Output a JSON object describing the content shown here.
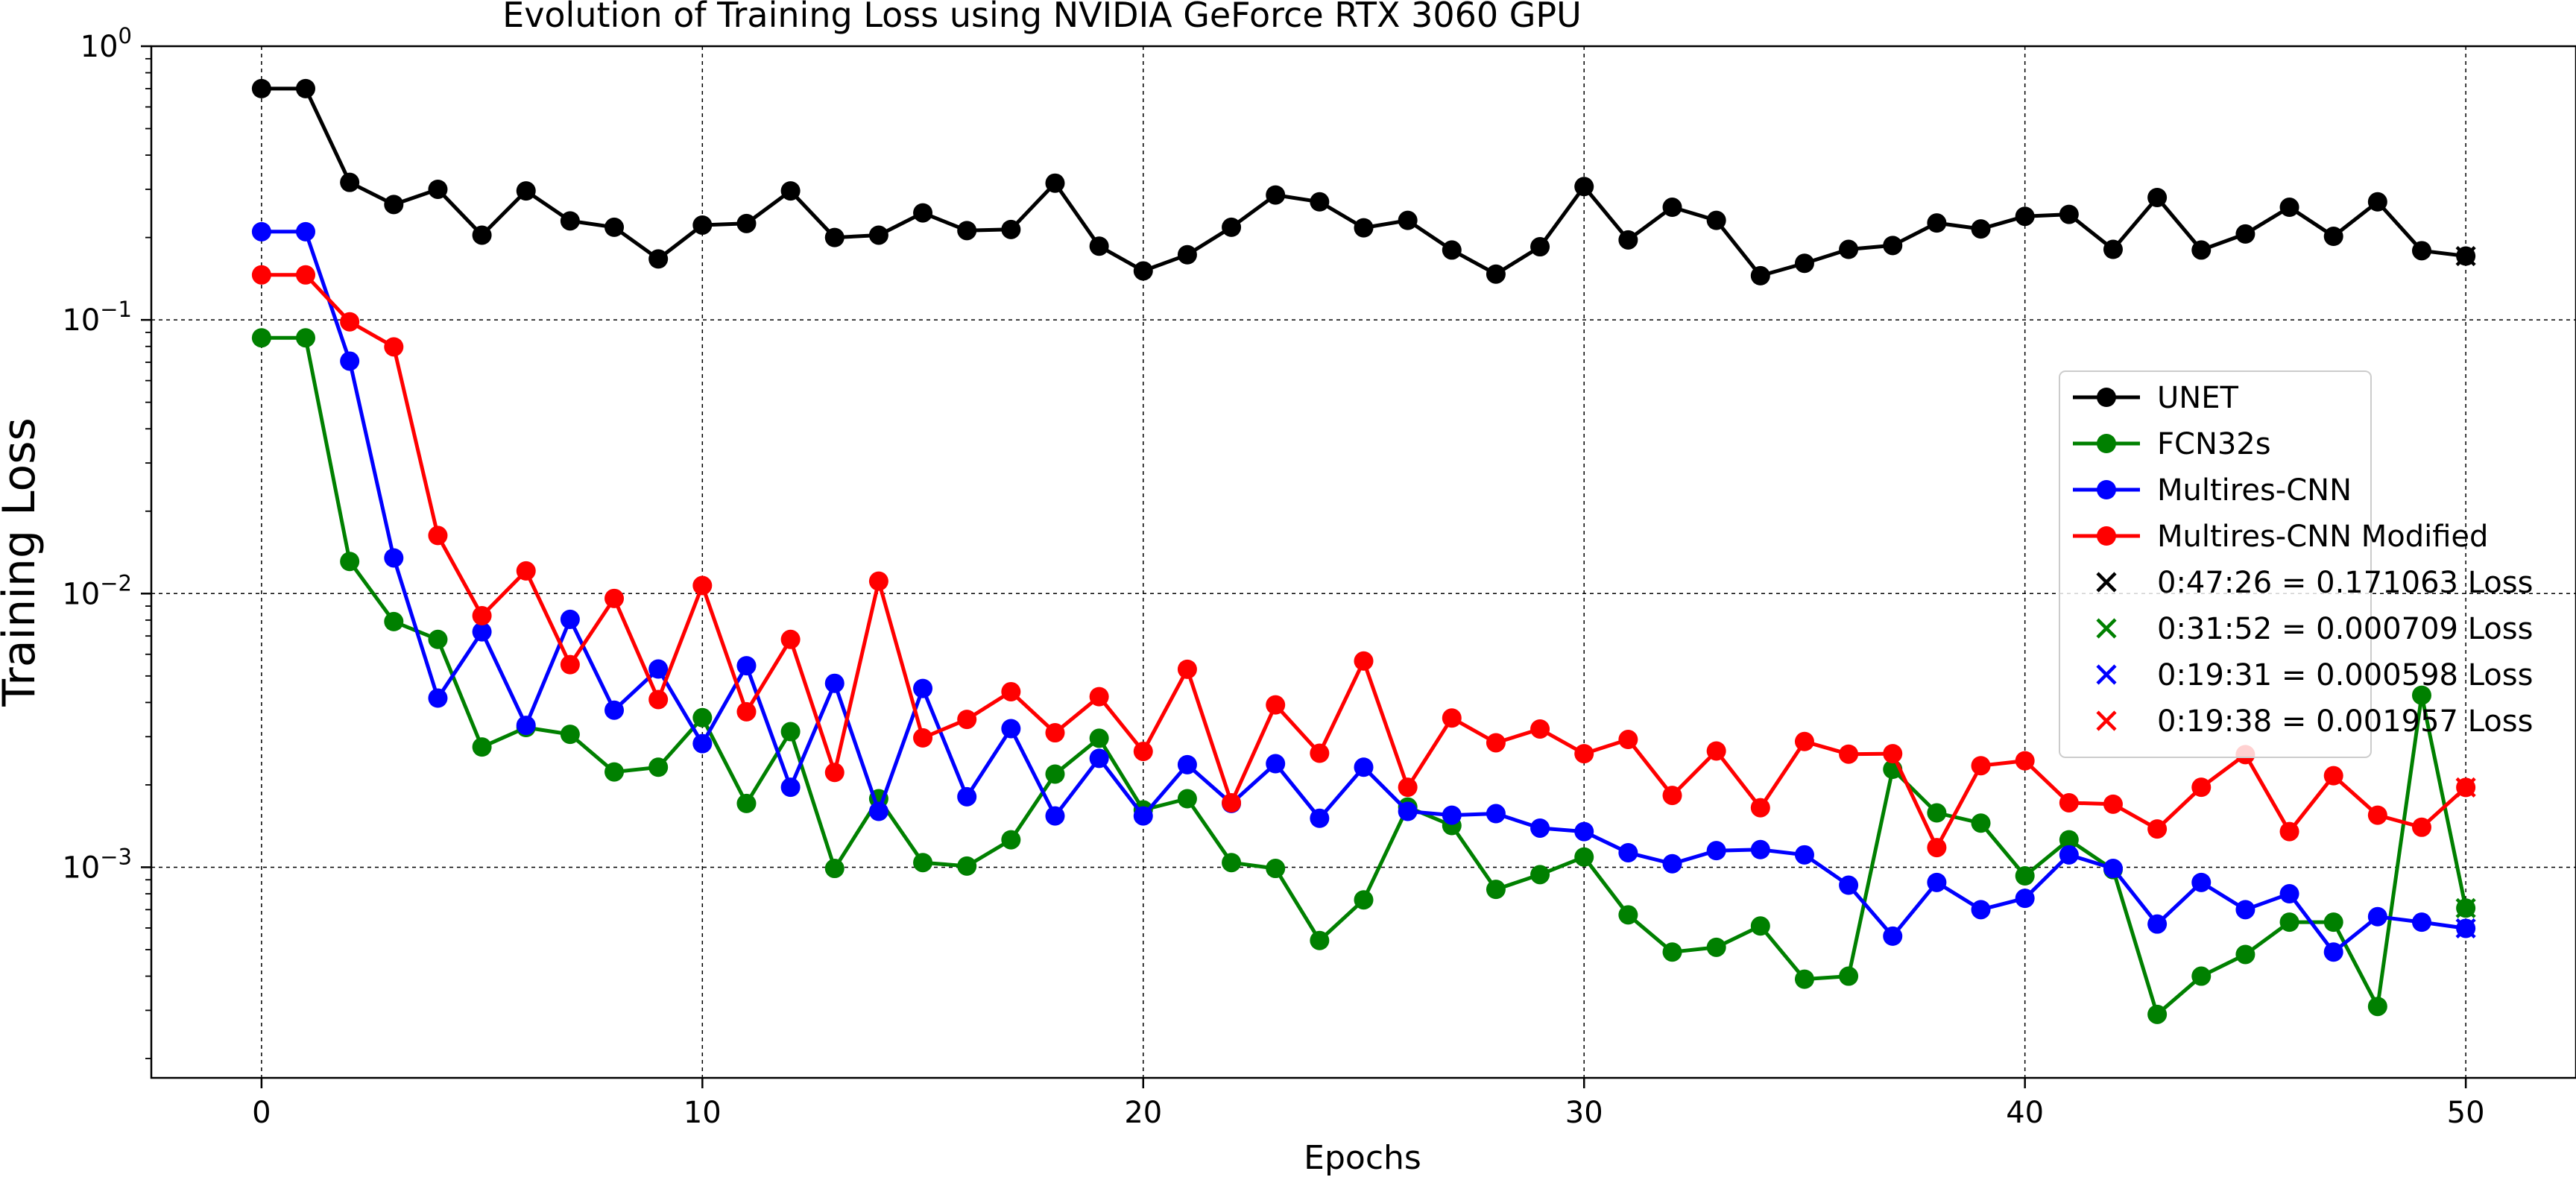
{
  "chart_data": {
    "type": "line",
    "title": "Evolution of Training Loss using NVIDIA GeForce RTX 3060 GPU",
    "xlabel": "Epochs",
    "ylabel": "Training Loss",
    "xlim": [
      -2.5,
      52.5
    ],
    "ylim": [
      0.00017,
      1.0
    ],
    "yscale": "log",
    "grid": true,
    "legend_position": "right",
    "x_ticks": [
      0,
      10,
      20,
      30,
      40,
      50
    ],
    "y_ticks": [
      {
        "base": "10",
        "exp": "0",
        "value": 1
      },
      {
        "base": "10",
        "exp": "−1",
        "value": 0.1
      },
      {
        "base": "10",
        "exp": "−2",
        "value": 0.01
      },
      {
        "base": "10",
        "exp": "−3",
        "value": 0.001
      }
    ],
    "x": [
      0,
      1,
      2,
      3,
      4,
      5,
      6,
      7,
      8,
      9,
      10,
      11,
      12,
      13,
      14,
      15,
      16,
      17,
      18,
      19,
      20,
      21,
      22,
      23,
      24,
      25,
      26,
      27,
      28,
      29,
      30,
      31,
      32,
      33,
      34,
      35,
      36,
      37,
      38,
      39,
      40,
      41,
      42,
      43,
      44,
      45,
      46,
      47,
      48,
      49,
      50
    ],
    "series": [
      {
        "name": "UNET",
        "color": "#000000",
        "values": [
          0.7,
          0.7,
          0.318,
          0.264,
          0.3,
          0.204,
          0.296,
          0.23,
          0.218,
          0.167,
          0.222,
          0.225,
          0.296,
          0.2,
          0.204,
          0.246,
          0.212,
          0.214,
          0.316,
          0.186,
          0.151,
          0.173,
          0.218,
          0.286,
          0.27,
          0.217,
          0.231,
          0.18,
          0.147,
          0.185,
          0.307,
          0.196,
          0.258,
          0.231,
          0.145,
          0.161,
          0.181,
          0.187,
          0.226,
          0.215,
          0.239,
          0.243,
          0.181,
          0.28,
          0.18,
          0.206,
          0.258,
          0.202,
          0.27,
          0.179,
          0.171063
        ]
      },
      {
        "name": "FCN32s",
        "color": "#008000",
        "values": [
          0.086,
          0.086,
          0.0131,
          0.0079,
          0.0068,
          0.00275,
          0.00324,
          0.00306,
          0.00223,
          0.00232,
          0.00352,
          0.00171,
          0.00313,
          0.00099,
          0.00178,
          0.00104,
          0.00101,
          0.00126,
          0.00219,
          0.00296,
          0.00162,
          0.00178,
          0.00104,
          0.00099,
          0.00054,
          0.00076,
          0.00166,
          0.00142,
          0.00083,
          0.00094,
          0.00109,
          0.00067,
          0.00049,
          0.00051,
          0.00061,
          0.00039,
          0.0004,
          0.00228,
          0.00158,
          0.00145,
          0.00093,
          0.00126,
          0.00098,
          0.00029,
          0.0004,
          0.00048,
          0.00063,
          0.00063,
          0.00031,
          0.00425,
          0.000709
        ]
      },
      {
        "name": "Multires-CNN",
        "color": "#0000ff",
        "values": [
          0.21,
          0.21,
          0.0707,
          0.0135,
          0.00415,
          0.00725,
          0.0033,
          0.00805,
          0.00375,
          0.0053,
          0.00283,
          0.00545,
          0.00196,
          0.0047,
          0.0016,
          0.0045,
          0.00181,
          0.00321,
          0.00154,
          0.0025,
          0.00154,
          0.00237,
          0.00171,
          0.00239,
          0.00151,
          0.00232,
          0.0016,
          0.00155,
          0.00157,
          0.00139,
          0.00135,
          0.00113,
          0.00103,
          0.00115,
          0.00116,
          0.00111,
          0.00086,
          0.00056,
          0.00088,
          0.0007,
          0.00077,
          0.00111,
          0.00099,
          0.00062,
          0.00088,
          0.0007,
          0.0008,
          0.00049,
          0.00066,
          0.00063,
          0.000598
        ]
      },
      {
        "name": "Multires-CNN Modified",
        "color": "#ff0000",
        "values": [
          0.146,
          0.146,
          0.0984,
          0.0797,
          0.0163,
          0.0083,
          0.0121,
          0.0055,
          0.0096,
          0.0041,
          0.0107,
          0.0037,
          0.0068,
          0.00222,
          0.0111,
          0.00297,
          0.00347,
          0.00438,
          0.0031,
          0.0042,
          0.00265,
          0.00529,
          0.00172,
          0.00392,
          0.00261,
          0.00567,
          0.00196,
          0.00351,
          0.00285,
          0.0032,
          0.0026,
          0.00293,
          0.00183,
          0.00266,
          0.00165,
          0.00288,
          0.00259,
          0.0026,
          0.00118,
          0.00235,
          0.00245,
          0.00172,
          0.0017,
          0.00138,
          0.00196,
          0.00258,
          0.00135,
          0.00216,
          0.00155,
          0.0014,
          0.001957
        ]
      }
    ],
    "final_markers": [
      {
        "label": "0:47:26 = 0.171063 Loss",
        "color": "#000000",
        "x": 50,
        "y": 0.171063
      },
      {
        "label": "0:31:52 = 0.000709 Loss",
        "color": "#008000",
        "x": 50,
        "y": 0.000709
      },
      {
        "label": "0:19:31 = 0.000598 Loss",
        "color": "#0000ff",
        "x": 50,
        "y": 0.000598
      },
      {
        "label": "0:19:38 = 0.001957 Loss",
        "color": "#ff0000",
        "x": 50,
        "y": 0.001957
      }
    ]
  }
}
